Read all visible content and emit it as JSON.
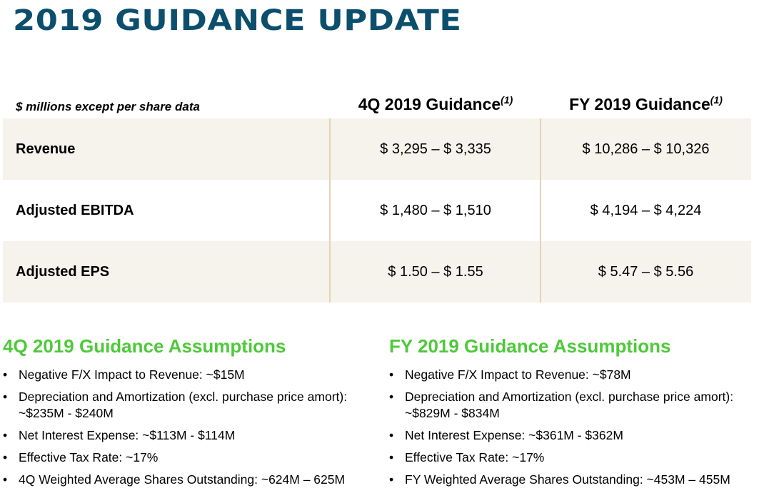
{
  "title": "2019 GUIDANCE UPDATE",
  "table": {
    "units_label": "$ millions except per share data",
    "columns": [
      {
        "label": "4Q 2019 Guidance",
        "footnote": "(1)"
      },
      {
        "label": "FY 2019 Guidance",
        "footnote": "(1)"
      }
    ],
    "rows": [
      {
        "label": "Revenue",
        "q4": "$ 3,295 – $ 3,335",
        "fy": "$ 10,286 – $ 10,326"
      },
      {
        "label": "Adjusted EBITDA",
        "q4": "$ 1,480 – $ 1,510",
        "fy": "$ 4,194 – $ 4,224"
      },
      {
        "label": "Adjusted EPS",
        "q4": "$ 1.50 – $ 1.55",
        "fy": "$ 5.47 – $ 5.56"
      }
    ]
  },
  "assumptions": {
    "q4": {
      "heading": "4Q 2019 Guidance Assumptions",
      "items": [
        "Negative F/X Impact to Revenue: ~$15M",
        "Depreciation and Amortization (excl. purchase price amort): ~$235M - $240M",
        "Net Interest Expense: ~$113M - $114M",
        "Effective Tax Rate: ~17%",
        "4Q Weighted Average Shares Outstanding: ~624M – 625M"
      ]
    },
    "fy": {
      "heading": "FY 2019 Guidance Assumptions",
      "items": [
        "Negative F/X Impact to Revenue: ~$78M",
        "Depreciation and Amortization (excl. purchase price amort): ~$829M - $834M",
        "Net Interest Expense: ~$361M - $362M",
        "Effective Tax Rate: ~17%",
        "FY Weighted Average Shares Outstanding: ~453M – 455M"
      ]
    }
  },
  "colors": {
    "title": "#0b4f6c",
    "heading_green": "#4ec93a",
    "row_shade": "#f6f2ec",
    "divider": "#e4d2b8"
  }
}
